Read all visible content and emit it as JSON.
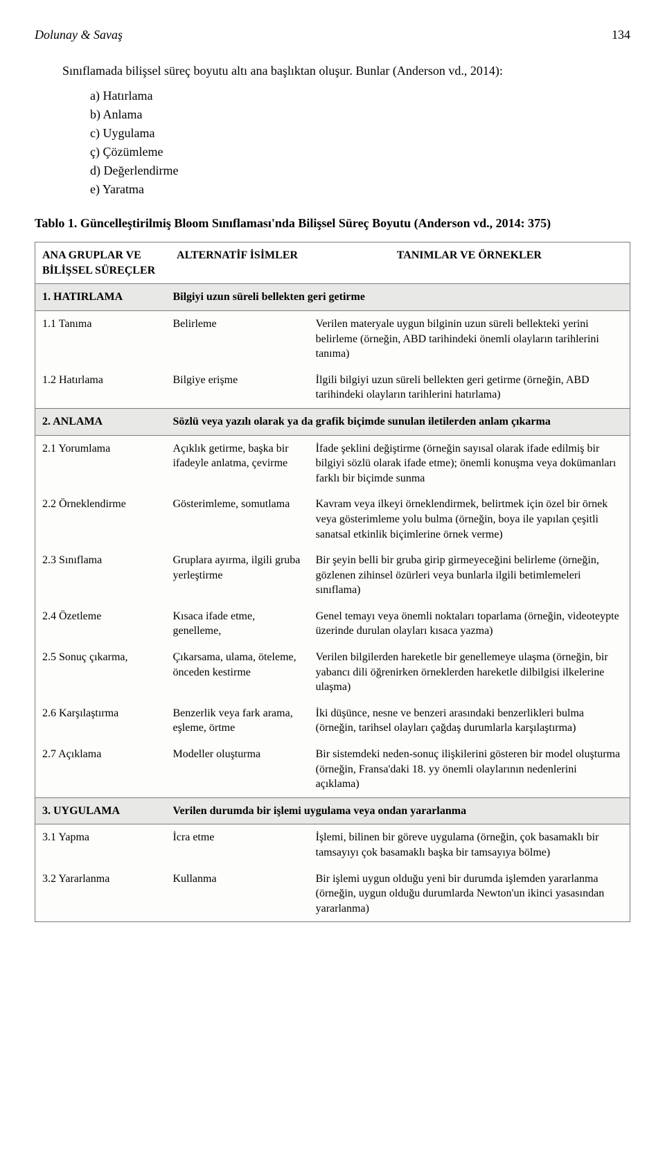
{
  "header": {
    "authors": "Dolunay & Savaş",
    "page": "134"
  },
  "intro": "Sınıflamada bilişsel süreç boyutu altı ana başlıktan oluşur. Bunlar (Anderson vd., 2014):",
  "list": [
    "a) Hatırlama",
    "b) Anlama",
    "c) Uygulama",
    "ç) Çözümleme",
    "d) Değerlendirme",
    "e) Yaratma"
  ],
  "caption": {
    "label": "Tablo 1.",
    "text": "Güncelleştirilmiş Bloom Sınıflaması'nda Bilişsel Süreç Boyutu (Anderson vd., 2014: 375)"
  },
  "table": {
    "headers": [
      "ANA GRUPLAR VE BİLİŞSEL SÜREÇLER",
      "ALTERNATİF İSİMLER",
      "TANIMLAR VE ÖRNEKLER"
    ],
    "sections": [
      {
        "name": "1. HATIRLAMA",
        "desc": "Bilgiyi uzun süreli bellekten geri getirme",
        "rows": [
          {
            "c1": "1.1 Tanıma",
            "c2": "Belirleme",
            "c3": "Verilen materyale uygun bilginin uzun süreli bellekteki yerini belirleme (örneğin, ABD tarihindeki önemli olayların tarihlerini tanıma)"
          },
          {
            "c1": "1.2 Hatırlama",
            "c2": "Bilgiye erişme",
            "c3": "İlgili bilgiyi uzun süreli bellekten geri getirme (örneğin, ABD tarihindeki olayların tarihlerini hatırlama)"
          }
        ]
      },
      {
        "name": "2. ANLAMA",
        "desc": "Sözlü veya yazılı olarak ya da grafik biçimde sunulan iletilerden anlam çıkarma",
        "rows": [
          {
            "c1": "2.1 Yorumlama",
            "c2": "Açıklık getirme, başka bir ifadeyle anlatma, çevirme",
            "c3": "İfade şeklini değiştirme (örneğin sayısal olarak ifade edilmiş bir bilgiyi sözlü olarak ifade etme); önemli konuşma veya dokümanları farklı bir biçimde sunma"
          },
          {
            "c1": "2.2 Örneklendirme",
            "c2": "Gösterimleme, somutlama",
            "c3": "Kavram veya ilkeyi örneklendirmek, belirtmek için özel bir örnek veya gösterimleme yolu bulma (örneğin, boya ile yapılan çeşitli sanatsal etkinlik biçimlerine örnek verme)"
          },
          {
            "c1": "2.3 Sınıflama",
            "c2": "Gruplara ayırma, ilgili gruba yerleştirme",
            "c3": "Bir şeyin belli bir gruba girip girmeyeceğini belirleme (örneğin, gözlenen zihinsel özürleri veya bunlarla ilgili betimlemeleri sınıflama)"
          },
          {
            "c1": "2.4 Özetleme",
            "c2": "Kısaca ifade etme, genelleme,",
            "c3": "Genel temayı veya önemli noktaları toparlama (örneğin, videoteypte üzerinde durulan olayları kısaca yazma)"
          },
          {
            "c1": "2.5 Sonuç çıkarma,",
            "c2": "Çıkarsama, ulama, öteleme, önceden kestirme",
            "c3": "Verilen bilgilerden hareketle bir genellemeye ulaşma (örneğin, bir yabancı dili öğrenirken örneklerden hareketle dilbilgisi ilkelerine ulaşma)"
          },
          {
            "c1": "2.6 Karşılaştırma",
            "c2": "Benzerlik veya fark arama, eşleme, örtme",
            "c3": "İki düşünce, nesne ve benzeri arasındaki benzerlikleri bulma (örneğin, tarihsel olayları çağdaş durumlarla karşılaştırma)"
          },
          {
            "c1": "2.7 Açıklama",
            "c2": "Modeller oluşturma",
            "c3": "Bir sistemdeki neden-sonuç ilişkilerini gösteren bir model oluşturma (örneğin, Fransa'daki 18. yy önemli olaylarının nedenlerini açıklama)"
          }
        ]
      },
      {
        "name": "3. UYGULAMA",
        "desc": "Verilen durumda bir işlemi uygulama veya ondan yararlanma",
        "rows": [
          {
            "c1": "3.1 Yapma",
            "c2": "İcra etme",
            "c3": "İşlemi, bilinen bir göreve uygulama (örneğin, çok basamaklı bir tamsayıyı çok basamaklı başka bir tamsayıya bölme)"
          },
          {
            "c1": "3.2 Yararlanma",
            "c2": "Kullanma",
            "c3": "Bir işlemi uygun olduğu yeni bir durumda işlemden yararlanma (örneğin, uygun olduğu durumlarda Newton'un ikinci yasasından yararlanma)"
          }
        ]
      }
    ]
  }
}
